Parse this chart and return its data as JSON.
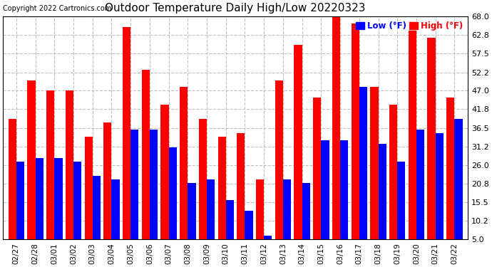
{
  "title": "Outdoor Temperature Daily High/Low 20220323",
  "copyright": "Copyright 2022 Cartronics.com",
  "dates": [
    "02/27",
    "02/28",
    "03/01",
    "03/02",
    "03/03",
    "03/04",
    "03/05",
    "03/06",
    "03/07",
    "03/08",
    "03/09",
    "03/10",
    "03/11",
    "03/12",
    "03/13",
    "03/14",
    "03/15",
    "03/16",
    "03/17",
    "03/18",
    "03/19",
    "03/20",
    "03/21",
    "03/22"
  ],
  "high": [
    39.0,
    50.0,
    47.0,
    47.0,
    34.0,
    38.0,
    65.0,
    53.0,
    43.0,
    48.0,
    39.0,
    34.0,
    35.0,
    22.0,
    50.0,
    60.0,
    45.0,
    69.0,
    66.0,
    48.0,
    43.0,
    64.0,
    62.0,
    45.0
  ],
  "low": [
    27.0,
    28.0,
    28.0,
    27.0,
    23.0,
    22.0,
    36.0,
    36.0,
    31.0,
    21.0,
    22.0,
    16.0,
    13.0,
    6.0,
    22.0,
    21.0,
    33.0,
    33.0,
    48.0,
    32.0,
    27.0,
    36.0,
    35.0,
    39.0
  ],
  "high_color": "#ff0000",
  "low_color": "#0000ff",
  "bg_color": "#ffffff",
  "ymin": 5.0,
  "ymax": 68.0,
  "yticks": [
    5.0,
    10.2,
    15.5,
    20.8,
    26.0,
    31.2,
    36.5,
    41.8,
    47.0,
    52.2,
    57.5,
    62.8,
    68.0
  ],
  "grid_color": "#c0c0c0",
  "legend_low_label": "Low (°F)",
  "legend_high_label": "High (°F)"
}
